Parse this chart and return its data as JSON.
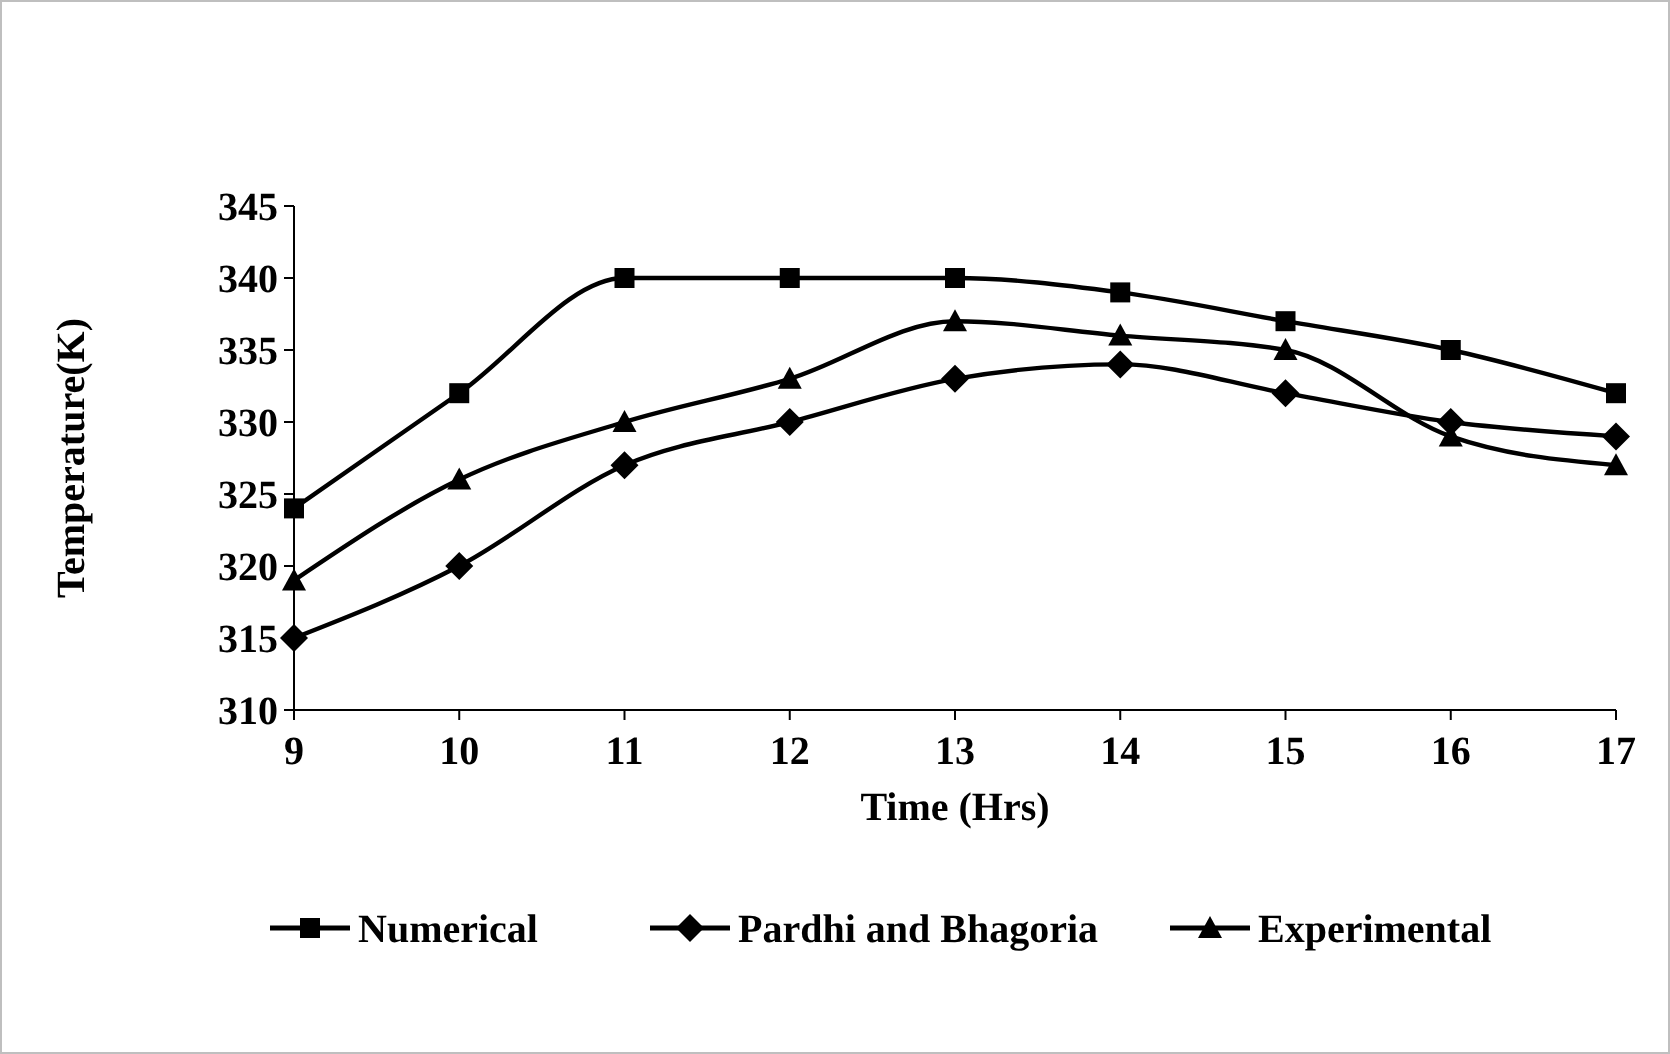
{
  "chart_data": {
    "type": "line",
    "xlabel": "Time (Hrs)",
    "ylabel": "Temperature(K)",
    "x": [
      9,
      10,
      11,
      12,
      13,
      14,
      15,
      16,
      17
    ],
    "xlim": [
      9,
      17
    ],
    "xticks": [
      9,
      10,
      11,
      12,
      13,
      14,
      15,
      16,
      17
    ],
    "ylim": [
      310,
      345
    ],
    "yticks": [
      310,
      315,
      320,
      325,
      330,
      335,
      340,
      345
    ],
    "grid": false,
    "legend": "bottom",
    "series": [
      {
        "name": "Numerical",
        "color": "#000000",
        "marker": "square",
        "values": [
          324,
          332,
          340,
          340,
          340,
          339,
          337,
          335,
          332
        ]
      },
      {
        "name": "Pardhi and Bhagoria",
        "color": "#000000",
        "marker": "diamond",
        "values": [
          315,
          320,
          327,
          330,
          333,
          334,
          332,
          330,
          329
        ]
      },
      {
        "name": "Experimental",
        "color": "#000000",
        "marker": "triangle",
        "values": [
          319,
          326,
          330,
          333,
          337,
          336,
          335,
          329,
          327
        ]
      }
    ]
  }
}
